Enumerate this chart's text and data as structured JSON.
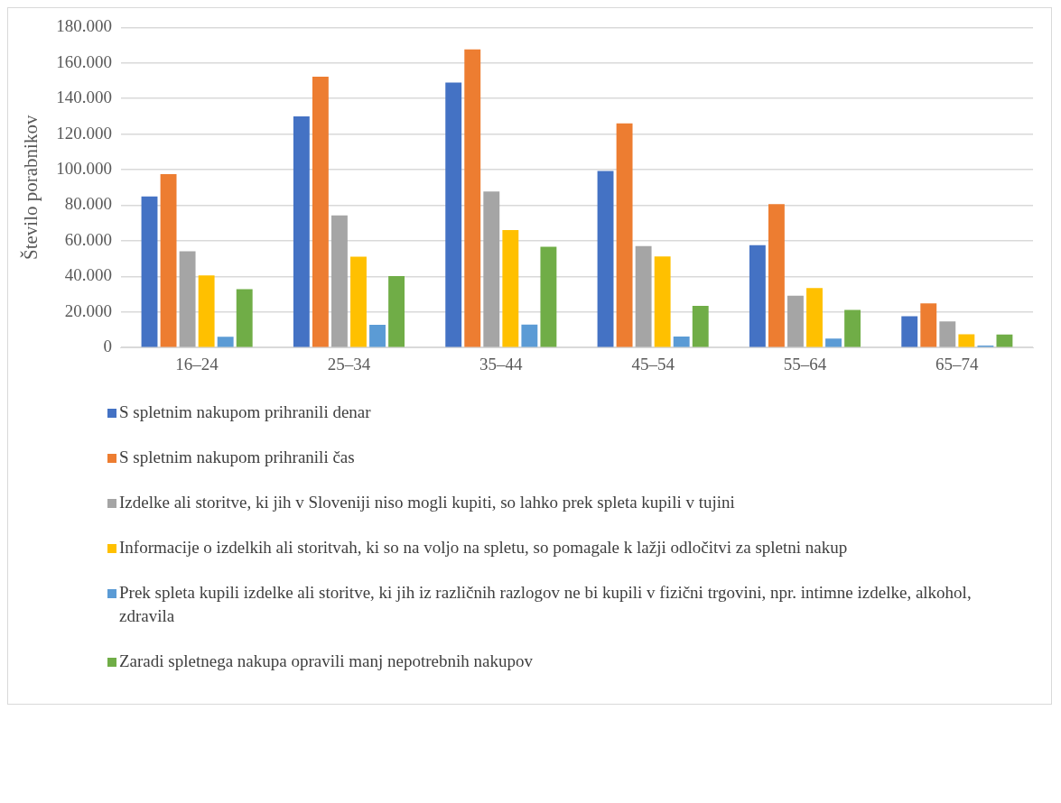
{
  "chart_data": {
    "type": "bar",
    "ylabel": "Število porabnikov",
    "categories": [
      "16–24",
      "25–34",
      "35–44",
      "45–54",
      "55–64",
      "65–74"
    ],
    "series": [
      {
        "name": "S spletnim nakupom prihranili denar",
        "color": "#4472c4",
        "values": [
          85000,
          130000,
          149000,
          99300,
          57600,
          17600
        ]
      },
      {
        "name": "S spletnim nakupom prihranili čas",
        "color": "#ed7d31",
        "values": [
          97500,
          152300,
          167600,
          126100,
          80700,
          24800
        ]
      },
      {
        "name": "Izdelke ali storitve, ki jih v Sloveniji niso mogli kupiti, so lahko prek spleta kupili v tujini",
        "color": "#a5a5a5",
        "values": [
          54100,
          74300,
          87800,
          57100,
          29100,
          14700
        ]
      },
      {
        "name": "Informacije o izdelkih ali storitvah, ki so na voljo na spletu, so pomagale k lažji odločitvi za spletni nakup",
        "color": "#ffc000",
        "values": [
          40600,
          51100,
          66100,
          51200,
          33500,
          7400
        ]
      },
      {
        "name": "Prek spleta kupili izdelke ali storitve, ki jih iz različnih razlogov ne bi kupili v fizični trgovini, npr. intimne izdelke, alkohol, zdravila",
        "color": "#5b9bd5",
        "values": [
          6000,
          12800,
          12900,
          6200,
          5000,
          1100
        ]
      },
      {
        "name": "Zaradi spletnega nakupa opravili manj nepotrebnih nakupov",
        "color": "#70ad47",
        "values": [
          32800,
          40200,
          56700,
          23400,
          21100,
          7300
        ]
      }
    ],
    "ylim": [
      0,
      180000
    ],
    "yticks": [
      0,
      {
        "value": 20000,
        "label": "20.000"
      },
      {
        "value": 40000,
        "label": "40.000"
      },
      {
        "value": 60000,
        "label": "60.000"
      },
      {
        "value": 80000,
        "label": "80.000"
      },
      {
        "value": 100000,
        "label": "100.000"
      },
      {
        "value": 120000,
        "label": "120.000"
      },
      {
        "value": 140000,
        "label": "140.000"
      },
      {
        "value": 160000,
        "label": "160.000"
      },
      {
        "value": 180000,
        "label": "180.000"
      }
    ],
    "grid": "y",
    "legend": "bottom"
  }
}
